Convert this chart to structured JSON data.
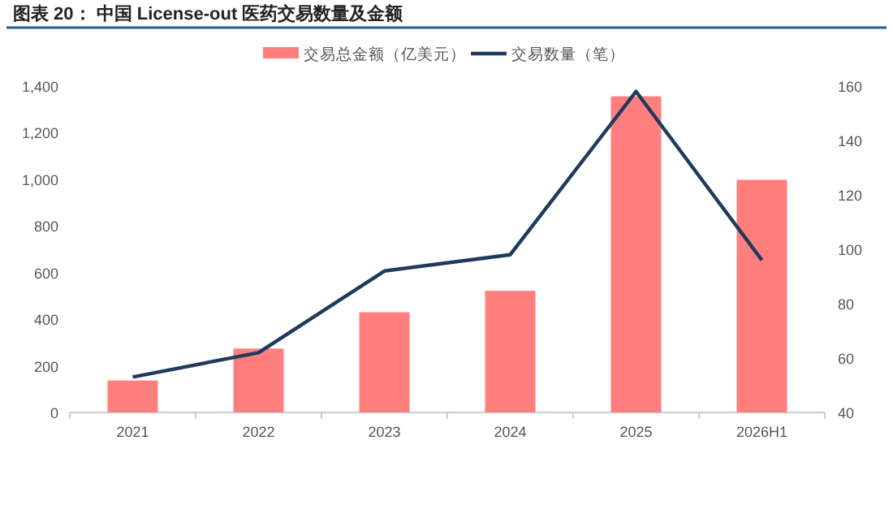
{
  "chart_data": {
    "type": "bar",
    "title": "图表 20：  中国 License-out 医药交易数量及金额",
    "categories": [
      "2021",
      "2022",
      "2023",
      "2024",
      "2025",
      "2026H1"
    ],
    "series": [
      {
        "name": "交易总金额（亿美元）",
        "color": "#ff7f7f",
        "values": [
          137,
          274,
          430,
          522,
          1356,
          998
        ]
      },
      {
        "name": "交易数量（笔）",
        "type": "line",
        "axis": "y2",
        "color": "#1f3a5c",
        "values": [
          53,
          62,
          92,
          98,
          158,
          96
        ]
      }
    ],
    "ylim": [
      0,
      1400
    ],
    "yticks": [
      0,
      200,
      400,
      600,
      800,
      {
        "value": 1000,
        "label": "1,000"
      },
      {
        "value": 1200,
        "label": "1,200"
      },
      {
        "value": 1400,
        "label": "1,400"
      }
    ],
    "y2lim": [
      40,
      160
    ],
    "y2ticks": [
      40,
      60,
      80,
      100,
      120,
      140,
      160
    ],
    "legend": "top"
  }
}
